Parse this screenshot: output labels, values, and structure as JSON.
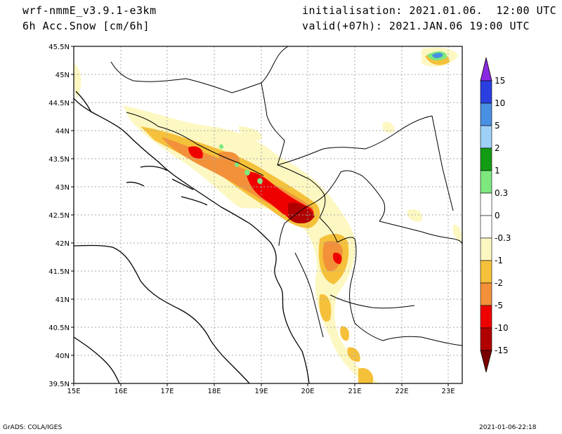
{
  "header": {
    "model": "wrf-nmmE_v3.9.1-e3km",
    "field": "6h Acc.Snow [cm/6h]",
    "init": "initialisation: 2021.01.06.  12:00 UTC",
    "valid": "valid(+07h): 2021.JAN.06 19:00 UTC"
  },
  "footer": {
    "credit": "GrADS: COLA/IGES",
    "stamp": "2021-01-06-22:18"
  },
  "map": {
    "lon_labels": [
      "15E",
      "16E",
      "17E",
      "18E",
      "19E",
      "20E",
      "21E",
      "22E",
      "23E"
    ],
    "lat_labels": [
      "45.5N",
      "45N",
      "44.5N",
      "44N",
      "43.5N",
      "43N",
      "42.5N",
      "42N",
      "41.5N",
      "41N",
      "40.5N",
      "40N",
      "39.5N"
    ],
    "lon_range": [
      15,
      23.3
    ],
    "lat_range": [
      39.5,
      45.5
    ]
  },
  "colorbar": {
    "labels": [
      "15",
      "10",
      "5",
      "2",
      "1",
      "0.3",
      "0",
      "-0.3",
      "-1",
      "-2",
      "-5",
      "-10",
      "-15"
    ],
    "colors": [
      "#8a2be2",
      "#2b3fe0",
      "#4a90e2",
      "#9fd0f7",
      "#139c13",
      "#7ee87e",
      "#ffffff",
      "#ffffff",
      "#fdf7c2",
      "#f5c13a",
      "#f2913a",
      "#ee0000",
      "#b00000",
      "#7a0000"
    ]
  }
}
